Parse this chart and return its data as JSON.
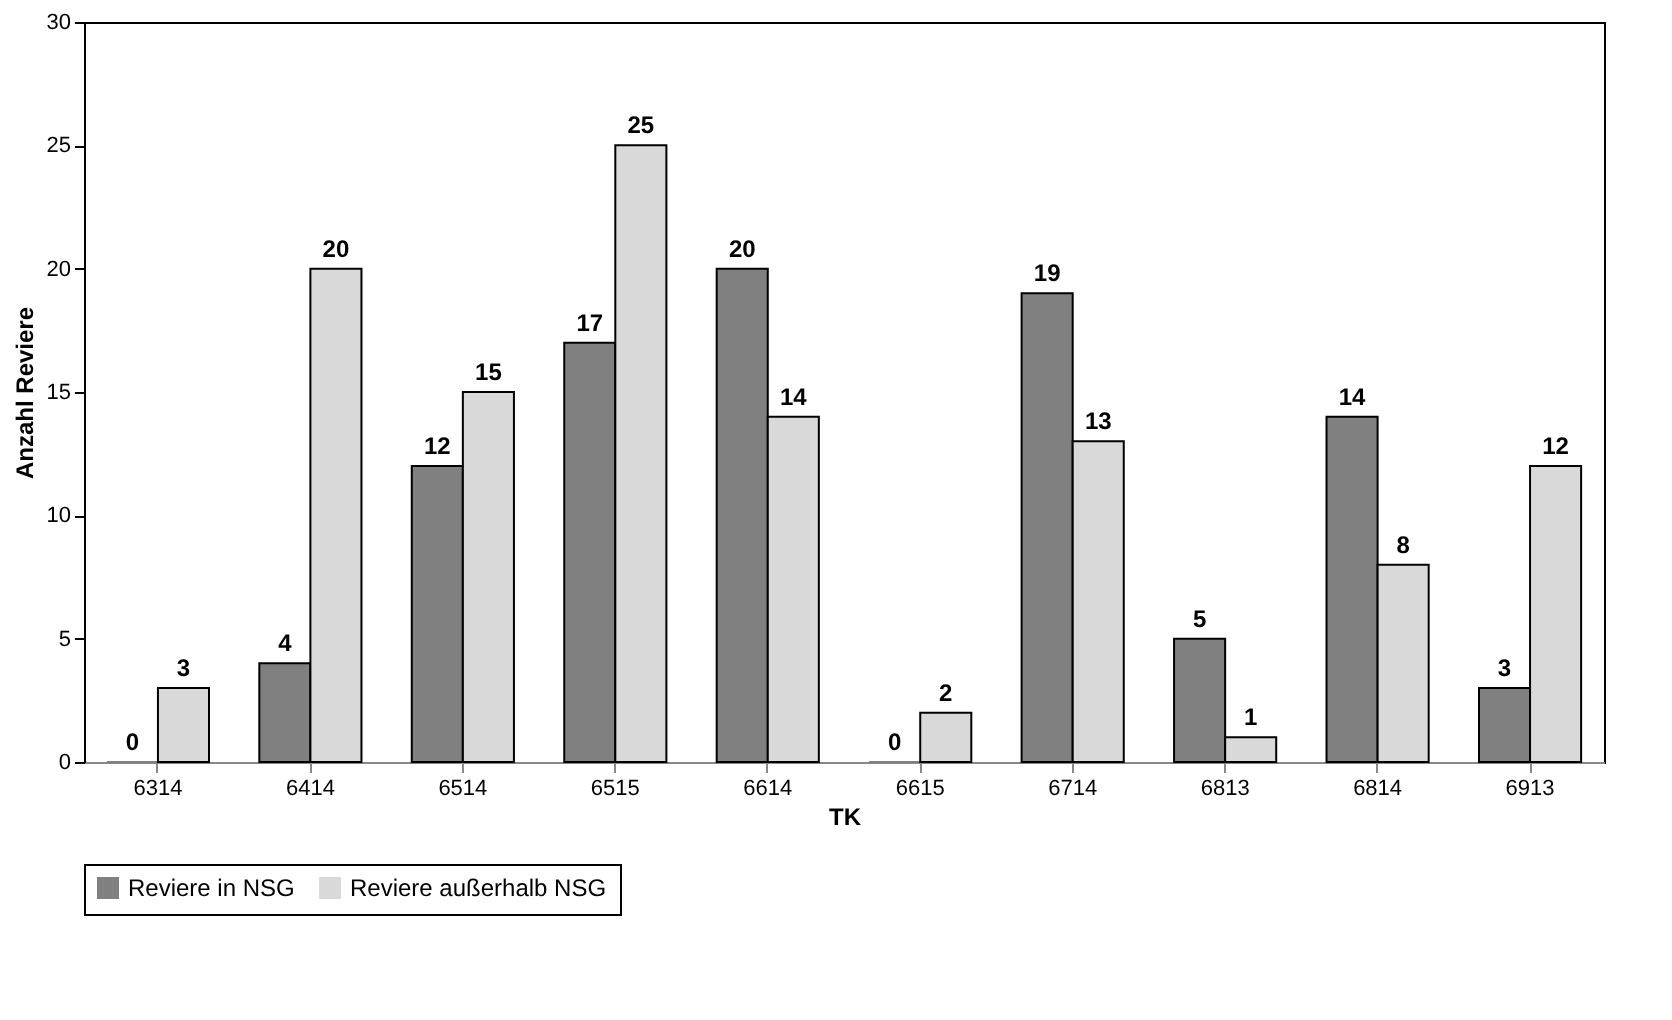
{
  "chart_data": {
    "type": "bar",
    "categories": [
      "6314",
      "6414",
      "6514",
      "6515",
      "6614",
      "6615",
      "6714",
      "6813",
      "6814",
      "6913"
    ],
    "series": [
      {
        "name": "Reviere in NSG",
        "color": "#808080",
        "values": [
          0,
          4,
          12,
          17,
          20,
          0,
          19,
          5,
          14,
          3
        ]
      },
      {
        "name": "Reviere außerhalb NSG",
        "color": "#d9d9d9",
        "values": [
          3,
          20,
          15,
          25,
          14,
          2,
          13,
          1,
          8,
          12
        ]
      }
    ],
    "xlabel": "TK",
    "ylabel": "Anzahl Reviere",
    "ylim": [
      0,
      30
    ],
    "yticks": [
      0,
      5,
      10,
      15,
      20,
      25,
      30
    ],
    "grid": false,
    "legend": "bottom",
    "data_labels": true
  }
}
